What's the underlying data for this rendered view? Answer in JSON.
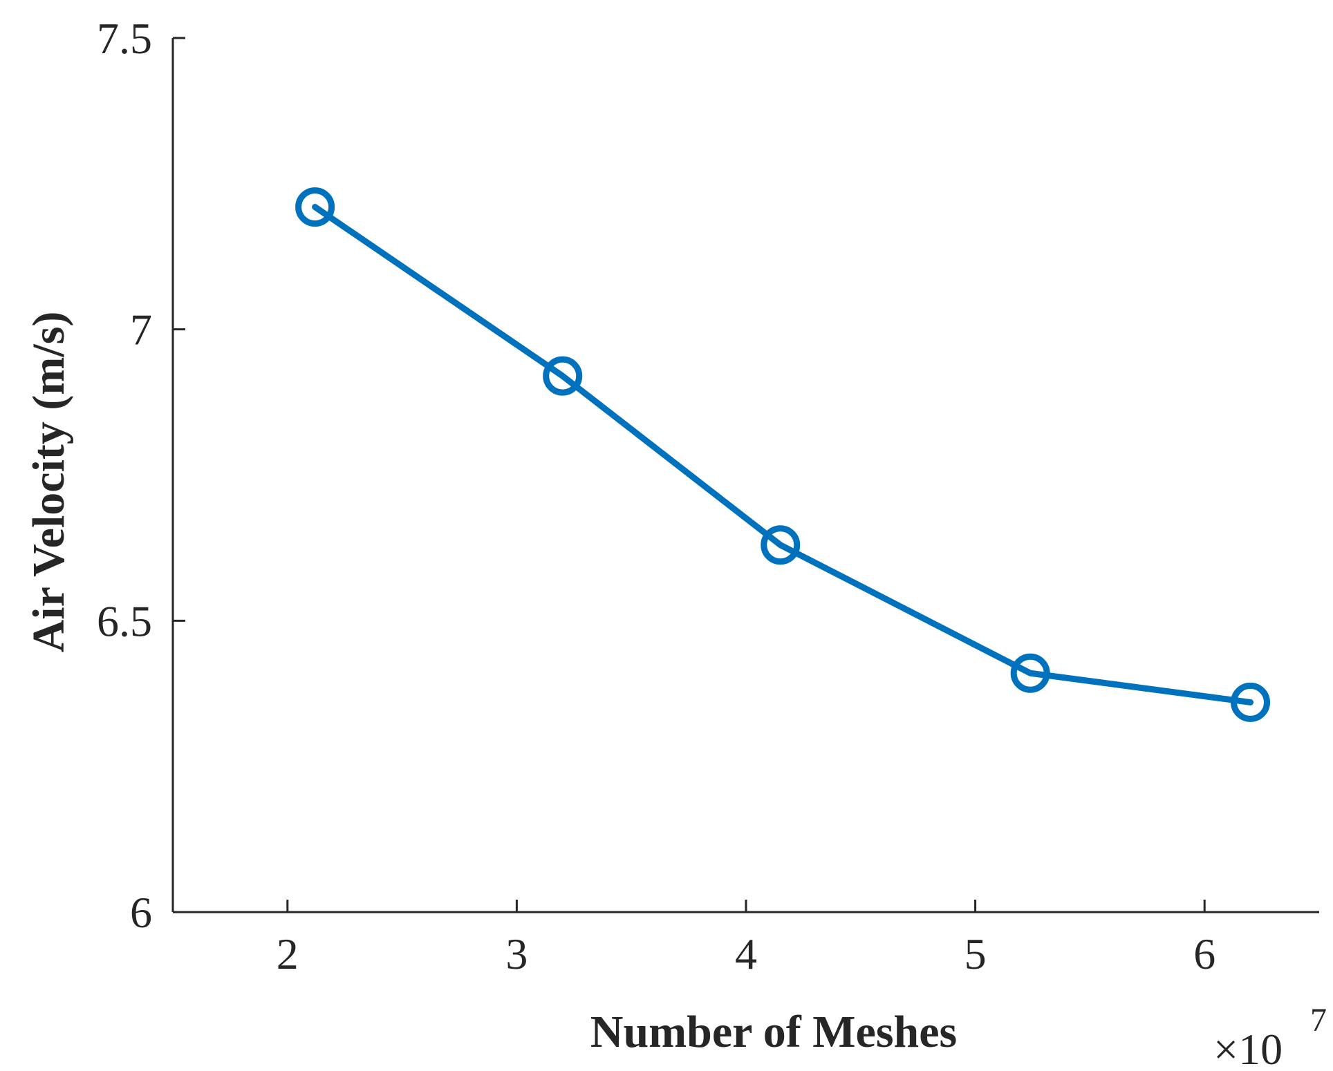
{
  "chart_data": {
    "type": "line",
    "xlabel": "Number of Meshes",
    "ylabel": "Air Velocity (m/s)",
    "x_multiplier": {
      "base": "×10",
      "exponent": "7"
    },
    "xlim": [
      1.5,
      6.5
    ],
    "ylim": [
      6,
      7.5
    ],
    "xticks": [
      2,
      3,
      4,
      5,
      6
    ],
    "yticks": [
      6,
      6.5,
      7,
      7.5
    ],
    "xtick_labels": [
      "2",
      "3",
      "4",
      "5",
      "6"
    ],
    "ytick_labels": [
      "6",
      "6.5",
      "7",
      "7.5"
    ],
    "grid": false,
    "marker": "circle",
    "series": [
      {
        "color": "#0072BD",
        "x": [
          2.12,
          3.2,
          4.15,
          5.24,
          6.2
        ],
        "y": [
          7.21,
          6.92,
          6.63,
          6.41,
          6.36
        ]
      }
    ]
  }
}
